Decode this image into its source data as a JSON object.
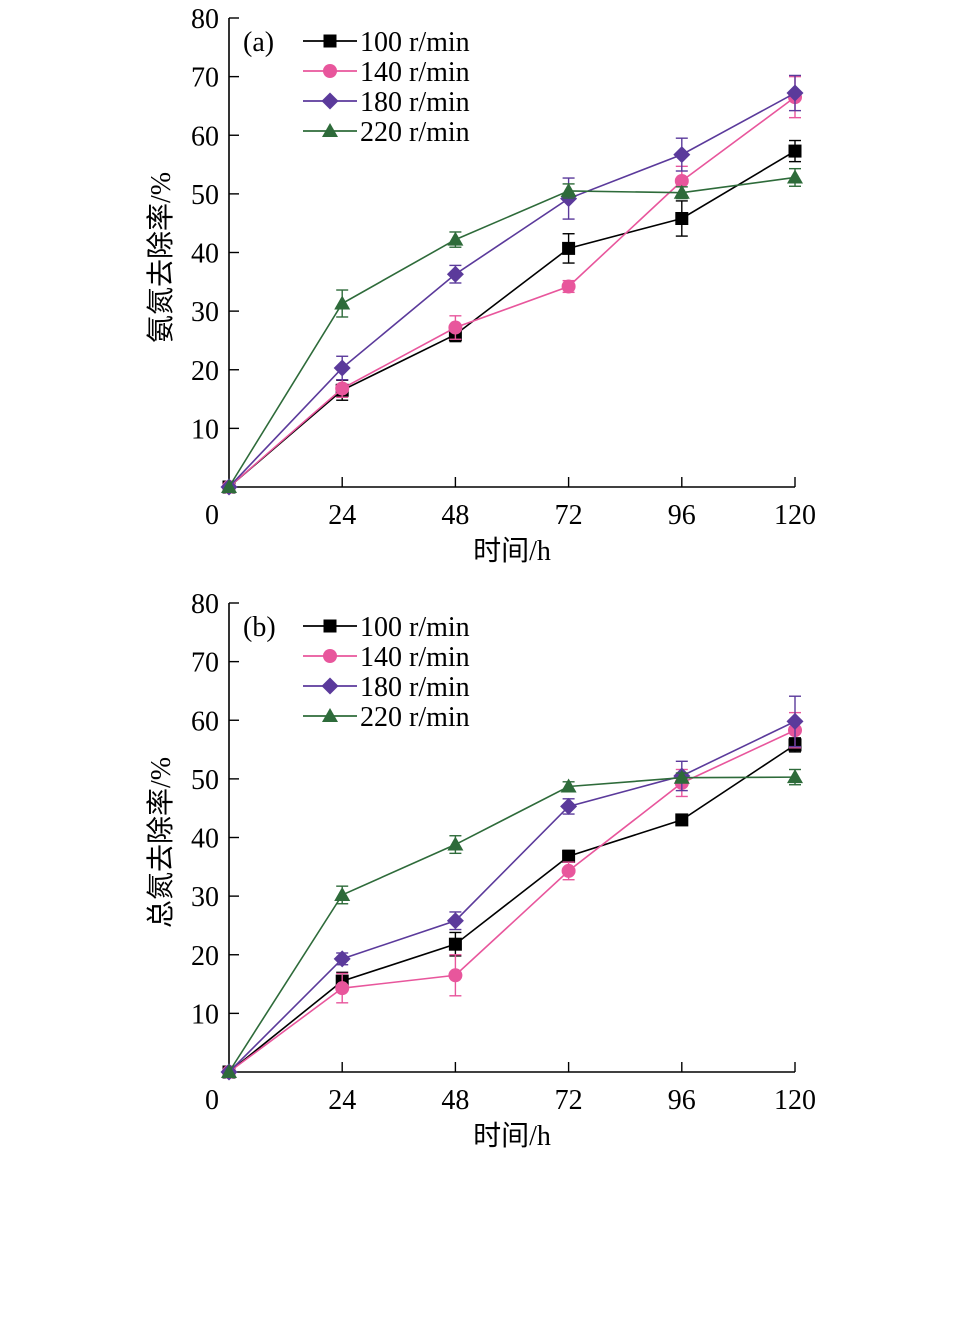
{
  "chart_data": [
    {
      "type": "line",
      "panel_label": "(a)",
      "xlabel": "时间/h",
      "ylabel": "氨氮去除率/%",
      "x": [
        0,
        24,
        48,
        72,
        96,
        120
      ],
      "x_ticks": [
        0,
        24,
        48,
        72,
        96,
        120
      ],
      "y_ticks": [
        10,
        20,
        30,
        40,
        50,
        60,
        70,
        80
      ],
      "xlim": [
        0,
        120
      ],
      "ylim": [
        0,
        80
      ],
      "legend_position": "top-left",
      "series": [
        {
          "name": "100 r/min",
          "color": "#000000",
          "marker": "square",
          "values": [
            0,
            16.5,
            26,
            40.7,
            45.8,
            57.3
          ],
          "errors": [
            0,
            1.7,
            1.2,
            2.5,
            3.0,
            1.8
          ]
        },
        {
          "name": "140 r/min",
          "color": "#e8569c",
          "marker": "circle",
          "values": [
            0,
            16.8,
            27.2,
            34.2,
            52.2,
            66.5
          ],
          "errors": [
            0,
            1.5,
            2.0,
            1.0,
            2.5,
            3.5
          ]
        },
        {
          "name": "180 r/min",
          "color": "#5b3a9b",
          "marker": "diamond",
          "values": [
            0,
            20.3,
            36.3,
            49.2,
            56.7,
            67.2
          ],
          "errors": [
            0,
            2.0,
            1.5,
            3.5,
            2.8,
            3.0
          ]
        },
        {
          "name": "220 r/min",
          "color": "#2e6b3a",
          "marker": "triangle",
          "values": [
            0,
            31.3,
            42.2,
            50.5,
            50.2,
            52.8
          ],
          "errors": [
            0,
            2.3,
            1.3,
            1.2,
            1.0,
            1.5
          ]
        }
      ]
    },
    {
      "type": "line",
      "panel_label": "(b)",
      "xlabel": "时间/h",
      "ylabel": "总氮去除率/%",
      "x": [
        0,
        24,
        48,
        72,
        96,
        120
      ],
      "x_ticks": [
        0,
        24,
        48,
        72,
        96,
        120
      ],
      "y_ticks": [
        10,
        20,
        30,
        40,
        50,
        60,
        70,
        80
      ],
      "xlim": [
        0,
        120
      ],
      "ylim": [
        0,
        80
      ],
      "legend_position": "top-left",
      "series": [
        {
          "name": "100 r/min",
          "color": "#000000",
          "marker": "square",
          "values": [
            0,
            15.5,
            21.8,
            36.8,
            43.0,
            55.8
          ],
          "errors": [
            0,
            1.5,
            2.0,
            1.0,
            0.8,
            1.2
          ]
        },
        {
          "name": "140 r/min",
          "color": "#e8569c",
          "marker": "circle",
          "values": [
            0,
            14.3,
            16.5,
            34.3,
            49.3,
            58.3
          ],
          "errors": [
            0,
            2.5,
            3.5,
            1.5,
            2.3,
            3.0
          ]
        },
        {
          "name": "180 r/min",
          "color": "#5b3a9b",
          "marker": "diamond",
          "values": [
            0,
            19.3,
            25.8,
            45.3,
            50.5,
            59.8
          ],
          "errors": [
            0,
            1.0,
            1.5,
            1.3,
            2.5,
            4.3
          ]
        },
        {
          "name": "220 r/min",
          "color": "#2e6b3a",
          "marker": "triangle",
          "values": [
            0,
            30.2,
            38.8,
            48.7,
            50.2,
            50.3
          ],
          "errors": [
            0,
            1.5,
            1.5,
            0.8,
            0.8,
            1.3
          ]
        }
      ]
    }
  ]
}
